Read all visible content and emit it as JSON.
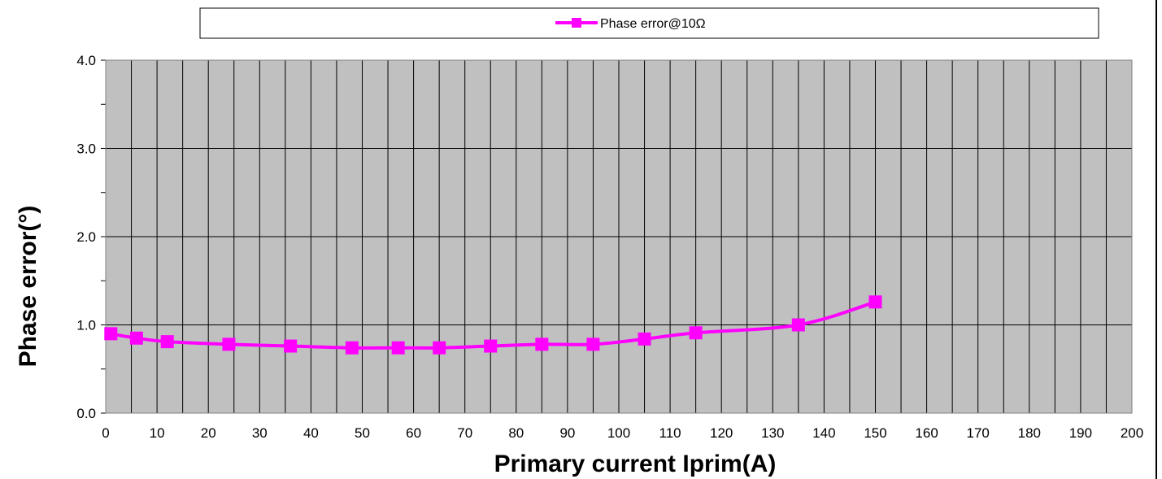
{
  "chart_data": {
    "type": "line",
    "title": "",
    "xlabel": "Primary current Iprim(A)",
    "ylabel": "Phase error(°)",
    "xlim": [
      0,
      200
    ],
    "ylim": [
      0,
      4
    ],
    "xticks": [
      "0",
      "10",
      "20",
      "30",
      "40",
      "50",
      "60",
      "70",
      "80",
      "90",
      "100",
      "110",
      "120",
      "130",
      "140",
      "150",
      "160",
      "170",
      "180",
      "190",
      "200"
    ],
    "yticks": [
      "0.0",
      "1.0",
      "2.0",
      "3.0",
      "4.0"
    ],
    "grid": true,
    "legend_position": "top",
    "series": [
      {
        "name": "Phase error@10Ω",
        "color": "#ff00ff",
        "marker": "square",
        "x": [
          1,
          6,
          12,
          24,
          36,
          48,
          57,
          65,
          75,
          85,
          95,
          105,
          115,
          135,
          150
        ],
        "y": [
          0.9,
          0.85,
          0.81,
          0.78,
          0.76,
          0.74,
          0.74,
          0.74,
          0.76,
          0.78,
          0.78,
          0.84,
          0.91,
          1.0,
          1.26
        ]
      }
    ]
  }
}
